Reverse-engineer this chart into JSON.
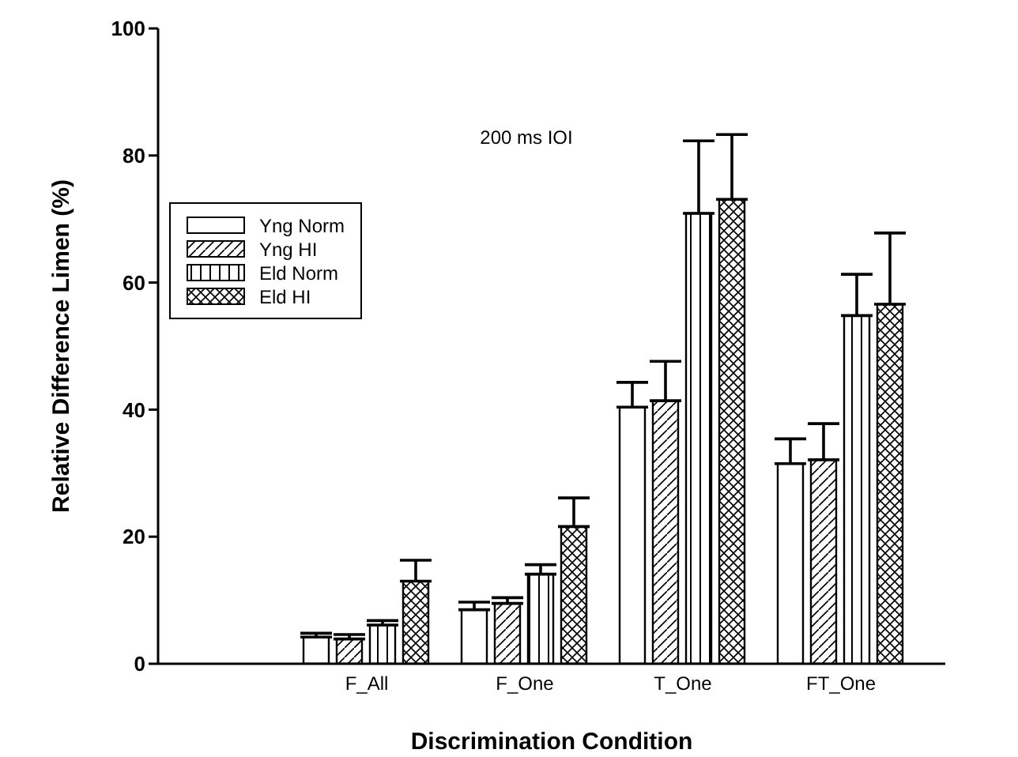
{
  "chart_data": {
    "type": "bar",
    "title": "200 ms IOI",
    "xlabel": "Discrimination Condition",
    "ylabel": "Relative Difference Limen (%)",
    "categories": [
      "F_All",
      "F_One",
      "T_One",
      "FT_One"
    ],
    "series": [
      {
        "name": "Yng Norm",
        "color": "#000000",
        "values": [
          4.2,
          8.5,
          40.4,
          31.5
        ],
        "errors": [
          [
            4.2,
            4.8
          ],
          [
            8.5,
            9.7
          ],
          [
            40.4,
            44.3
          ],
          [
            31.5,
            35.4
          ]
        ]
      },
      {
        "name": "Yng HI",
        "color": "#000000",
        "values": [
          3.9,
          9.5,
          41.4,
          32.1
        ],
        "errors": [
          [
            3.9,
            4.6
          ],
          [
            9.5,
            10.4
          ],
          [
            41.4,
            47.6
          ],
          [
            32.1,
            37.8
          ]
        ]
      },
      {
        "name": "Eld Norm",
        "color": "#000000",
        "values": [
          6.1,
          14.1,
          70.9,
          54.8
        ],
        "errors": [
          [
            6.1,
            6.8
          ],
          [
            14.1,
            15.6
          ],
          [
            70.9,
            82.3
          ],
          [
            54.8,
            61.3
          ]
        ]
      },
      {
        "name": "Eld HI",
        "color": "#000000",
        "values": [
          13.0,
          21.6,
          73.1,
          56.6
        ],
        "errors": [
          [
            13.0,
            16.3
          ],
          [
            21.6,
            26.1
          ],
          [
            73.1,
            83.3
          ],
          [
            56.6,
            67.8
          ]
        ]
      }
    ],
    "ylim": [
      0,
      100
    ],
    "yticks": [
      0,
      20,
      40,
      60,
      80,
      100
    ],
    "grid": false,
    "legend": "top left"
  }
}
